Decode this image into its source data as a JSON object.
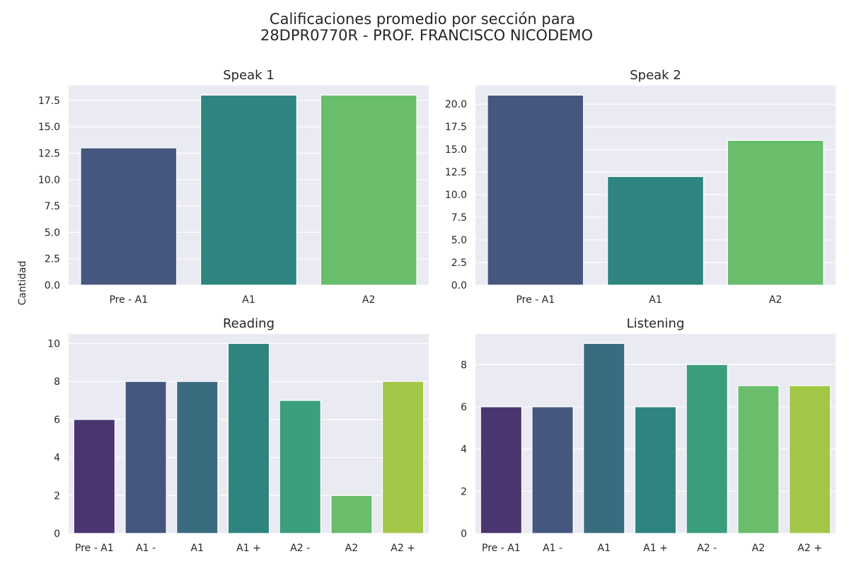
{
  "figure": {
    "title_line1": "Calificaciones promedio por sección para",
    "title_line2": "28DPR0770R - PROF. FRANCISCO NICODEMO",
    "ylabel": "Cantidad"
  },
  "chart_data": [
    {
      "type": "bar",
      "title": "Speak 1",
      "categories": [
        "Pre - A1",
        "A1",
        "A2"
      ],
      "values": [
        13,
        18,
        18
      ],
      "colors": [
        "#46577f",
        "#2e847f",
        "#6abd6b"
      ],
      "ylim": [
        0,
        18.9
      ],
      "yticks": [
        0,
        2.5,
        5,
        7.5,
        10,
        12.5,
        15,
        17.5
      ],
      "ytick_labels": [
        "0.0",
        "2.5",
        "5.0",
        "7.5",
        "10.0",
        "12.5",
        "15.0",
        "17.5"
      ],
      "grid": true
    },
    {
      "type": "bar",
      "title": "Speak 2",
      "categories": [
        "Pre - A1",
        "A1",
        "A2"
      ],
      "values": [
        21,
        12,
        16
      ],
      "colors": [
        "#46577f",
        "#2e847f",
        "#6abd6b"
      ],
      "ylim": [
        0,
        22.05
      ],
      "yticks": [
        0,
        2.5,
        5,
        7.5,
        10,
        12.5,
        15,
        17.5,
        20
      ],
      "ytick_labels": [
        "0.0",
        "2.5",
        "5.0",
        "7.5",
        "10.0",
        "12.5",
        "15.0",
        "17.5",
        "20.0"
      ],
      "grid": true
    },
    {
      "type": "bar",
      "title": "Reading",
      "categories": [
        "Pre - A1",
        "A1 -",
        "A1",
        "A1 +",
        "A2 -",
        "A2",
        "A2 +"
      ],
      "values": [
        6,
        8,
        8,
        10,
        7,
        2,
        8
      ],
      "colors": [
        "#4a3571",
        "#46577f",
        "#3a6c80",
        "#2e847f",
        "#3b9e7c",
        "#6abd6b",
        "#a2c746"
      ],
      "ylim": [
        0,
        10.5
      ],
      "yticks": [
        0,
        2,
        4,
        6,
        8,
        10
      ],
      "ytick_labels": [
        "0",
        "2",
        "4",
        "6",
        "8",
        "10"
      ],
      "grid": true
    },
    {
      "type": "bar",
      "title": "Listening",
      "categories": [
        "Pre - A1",
        "A1 -",
        "A1",
        "A1 +",
        "A2 -",
        "A2",
        "A2 +"
      ],
      "values": [
        6,
        6,
        9,
        6,
        8,
        7,
        7
      ],
      "colors": [
        "#4a3571",
        "#46577f",
        "#3a6c80",
        "#2e847f",
        "#3b9e7c",
        "#6abd6b",
        "#a2c746"
      ],
      "ylim": [
        0,
        9.45
      ],
      "yticks": [
        0,
        2,
        4,
        6,
        8
      ],
      "ytick_labels": [
        "0",
        "2",
        "4",
        "6",
        "8"
      ],
      "grid": true
    }
  ]
}
